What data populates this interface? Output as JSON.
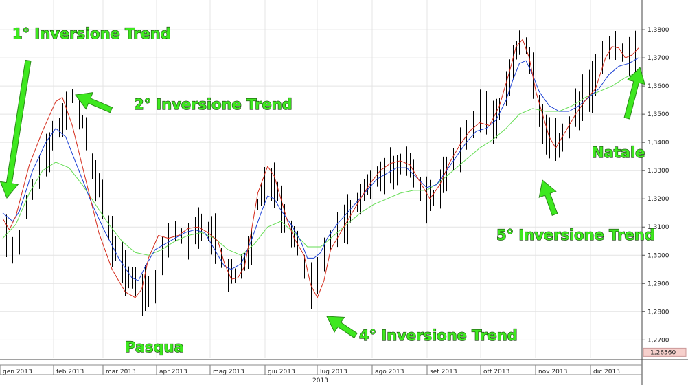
{
  "chart_data": {
    "type": "line",
    "subtype": "ohlc-bars-with-moving-averages",
    "y_range": [
      1.2635,
      1.3905
    ],
    "y_ticks": [
      "1,2700",
      "1,2800",
      "1,2900",
      "1,3000",
      "1,3100",
      "1,3200",
      "1,3300",
      "1,3400",
      "1,3500",
      "1,3600",
      "1,3700",
      "1,3800"
    ],
    "x_ticks": [
      "gen 2013",
      "feb 2013",
      "mar 2013",
      "apr 2013",
      "mag 2013",
      "giu 2013",
      "lug 2013",
      "ago 2013",
      "set 2013",
      "ott 2013",
      "nov 2013",
      "dic 2013"
    ],
    "x_axis_year": "2013",
    "current_price": "1,26560",
    "grid": true,
    "colors": {
      "bars": "#000000",
      "ma_fast": "#d42a1a",
      "ma_mid": "#1a3fd4",
      "ma_slow": "#66dd55",
      "annotations": "#3ee81f",
      "price_box": "#f6d0cc"
    },
    "price_path": [
      [
        0,
        1.3085
      ],
      [
        4,
        1.3012
      ],
      [
        8,
        1.3205
      ],
      [
        12,
        1.3335
      ],
      [
        17,
        1.3455
      ],
      [
        21,
        1.3562
      ],
      [
        23,
        1.351
      ],
      [
        25,
        1.344
      ],
      [
        27,
        1.3305
      ],
      [
        29,
        1.3245
      ],
      [
        33,
        1.3042
      ],
      [
        37,
        1.2945
      ],
      [
        40,
        1.2895
      ],
      [
        43,
        1.2885
      ],
      [
        45,
        1.2858
      ],
      [
        47,
        1.2905
      ],
      [
        49,
        1.3055
      ],
      [
        52,
        1.309
      ],
      [
        55,
        1.306
      ],
      [
        58,
        1.3085
      ],
      [
        61,
        1.3115
      ],
      [
        64,
        1.306
      ],
      [
        67,
        1.296
      ],
      [
        70,
        1.293
      ],
      [
        72,
        1.2962
      ],
      [
        75,
        1.3035
      ],
      [
        77,
        1.318
      ],
      [
        80,
        1.3265
      ],
      [
        82,
        1.3262
      ],
      [
        84,
        1.317
      ],
      [
        86,
        1.3095
      ],
      [
        89,
        1.304
      ],
      [
        92,
        1.292
      ],
      [
        94,
        1.286
      ],
      [
        96,
        1.2958
      ],
      [
        98,
        1.3015
      ],
      [
        100,
        1.3075
      ],
      [
        103,
        1.3115
      ],
      [
        106,
        1.3158
      ],
      [
        109,
        1.323
      ],
      [
        112,
        1.3275
      ],
      [
        115,
        1.3285
      ],
      [
        118,
        1.331
      ],
      [
        121,
        1.3345
      ],
      [
        123,
        1.332
      ],
      [
        125,
        1.3255
      ],
      [
        127,
        1.32
      ],
      [
        129,
        1.3195
      ],
      [
        131,
        1.321
      ],
      [
        134,
        1.3285
      ],
      [
        137,
        1.3355
      ],
      [
        140,
        1.342
      ],
      [
        143,
        1.3495
      ],
      [
        146,
        1.3512
      ],
      [
        149,
        1.348
      ],
      [
        151,
        1.3558
      ],
      [
        153,
        1.3625
      ],
      [
        155,
        1.372
      ],
      [
        157,
        1.3775
      ],
      [
        158,
        1.3745
      ],
      [
        160,
        1.365
      ],
      [
        162,
        1.351
      ],
      [
        164,
        1.3425
      ],
      [
        166,
        1.3375
      ],
      [
        168,
        1.34
      ],
      [
        170,
        1.344
      ],
      [
        172,
        1.3495
      ],
      [
        175,
        1.356
      ],
      [
        178,
        1.3598
      ],
      [
        180,
        1.364
      ],
      [
        182,
        1.372
      ],
      [
        184,
        1.376
      ],
      [
        186,
        1.374
      ],
      [
        188,
        1.369
      ],
      [
        190,
        1.37
      ],
      [
        192,
        1.374
      ]
    ],
    "ma_fast_path": [
      [
        0,
        1.313
      ],
      [
        2,
        1.309
      ],
      [
        4,
        1.314
      ],
      [
        8,
        1.332
      ],
      [
        12,
        1.344
      ],
      [
        16,
        1.3545
      ],
      [
        18,
        1.356
      ],
      [
        21,
        1.346
      ],
      [
        25,
        1.327
      ],
      [
        29,
        1.308
      ],
      [
        33,
        1.295
      ],
      [
        37,
        1.287
      ],
      [
        40,
        1.285
      ],
      [
        42,
        1.288
      ],
      [
        44,
        1.299
      ],
      [
        47,
        1.307
      ],
      [
        50,
        1.306
      ],
      [
        53,
        1.307
      ],
      [
        56,
        1.3095
      ],
      [
        59,
        1.31
      ],
      [
        62,
        1.308
      ],
      [
        65,
        1.305
      ],
      [
        67,
        1.297
      ],
      [
        69,
        1.2915
      ],
      [
        71,
        1.292
      ],
      [
        73,
        1.296
      ],
      [
        75,
        1.308
      ],
      [
        77,
        1.322
      ],
      [
        80,
        1.3315
      ],
      [
        82,
        1.328
      ],
      [
        84,
        1.32
      ],
      [
        86,
        1.312
      ],
      [
        88,
        1.306
      ],
      [
        91,
        1.3
      ],
      [
        93,
        1.2895
      ],
      [
        95,
        1.285
      ],
      [
        97,
        1.291
      ],
      [
        99,
        1.302
      ],
      [
        102,
        1.308
      ],
      [
        105,
        1.314
      ],
      [
        108,
        1.32
      ],
      [
        111,
        1.3255
      ],
      [
        114,
        1.33
      ],
      [
        117,
        1.3325
      ],
      [
        120,
        1.3335
      ],
      [
        123,
        1.332
      ],
      [
        126,
        1.326
      ],
      [
        129,
        1.32
      ],
      [
        132,
        1.325
      ],
      [
        135,
        1.333
      ],
      [
        138,
        1.339
      ],
      [
        141,
        1.344
      ],
      [
        144,
        1.347
      ],
      [
        147,
        1.346
      ],
      [
        150,
        1.353
      ],
      [
        153,
        1.365
      ],
      [
        155,
        1.374
      ],
      [
        157,
        1.3765
      ],
      [
        159,
        1.37
      ],
      [
        161,
        1.358
      ],
      [
        163,
        1.35
      ],
      [
        165,
        1.342
      ],
      [
        167,
        1.338
      ],
      [
        170,
        1.344
      ],
      [
        173,
        1.35
      ],
      [
        176,
        1.355
      ],
      [
        179,
        1.359
      ],
      [
        182,
        1.37
      ],
      [
        184,
        1.374
      ],
      [
        186,
        1.3735
      ],
      [
        188,
        1.37
      ],
      [
        190,
        1.371
      ],
      [
        192,
        1.3735
      ]
    ],
    "ma_mid_path": [
      [
        0,
        1.315
      ],
      [
        3,
        1.312
      ],
      [
        5,
        1.3155
      ],
      [
        9,
        1.33
      ],
      [
        13,
        1.34
      ],
      [
        16,
        1.345
      ],
      [
        19,
        1.342
      ],
      [
        23,
        1.33
      ],
      [
        27,
        1.318
      ],
      [
        31,
        1.308
      ],
      [
        35,
        1.299
      ],
      [
        39,
        1.292
      ],
      [
        41,
        1.291
      ],
      [
        43,
        1.296
      ],
      [
        46,
        1.302
      ],
      [
        49,
        1.304
      ],
      [
        52,
        1.306
      ],
      [
        55,
        1.308
      ],
      [
        58,
        1.309
      ],
      [
        61,
        1.308
      ],
      [
        64,
        1.302
      ],
      [
        67,
        1.296
      ],
      [
        69,
        1.295
      ],
      [
        72,
        1.297
      ],
      [
        75,
        1.305
      ],
      [
        78,
        1.315
      ],
      [
        80,
        1.321
      ],
      [
        82,
        1.32
      ],
      [
        84,
        1.316
      ],
      [
        87,
        1.311
      ],
      [
        90,
        1.305
      ],
      [
        92,
        1.299
      ],
      [
        94,
        1.299
      ],
      [
        96,
        1.301
      ],
      [
        98,
        1.306
      ],
      [
        101,
        1.311
      ],
      [
        104,
        1.315
      ],
      [
        107,
        1.319
      ],
      [
        110,
        1.323
      ],
      [
        113,
        1.327
      ],
      [
        116,
        1.329
      ],
      [
        119,
        1.331
      ],
      [
        122,
        1.331
      ],
      [
        125,
        1.3275
      ],
      [
        128,
        1.324
      ],
      [
        131,
        1.325
      ],
      [
        134,
        1.33
      ],
      [
        137,
        1.335
      ],
      [
        140,
        1.34
      ],
      [
        143,
        1.344
      ],
      [
        146,
        1.345
      ],
      [
        149,
        1.348
      ],
      [
        152,
        1.355
      ],
      [
        154,
        1.362
      ],
      [
        156,
        1.368
      ],
      [
        158,
        1.369
      ],
      [
        160,
        1.364
      ],
      [
        162,
        1.358
      ],
      [
        165,
        1.353
      ],
      [
        168,
        1.351
      ],
      [
        171,
        1.351
      ],
      [
        174,
        1.353
      ],
      [
        177,
        1.356
      ],
      [
        180,
        1.359
      ],
      [
        183,
        1.364
      ],
      [
        186,
        1.367
      ],
      [
        189,
        1.368
      ],
      [
        192,
        1.37
      ]
    ],
    "ma_slow_path": [
      [
        0,
        1.306
      ],
      [
        4,
        1.311
      ],
      [
        8,
        1.322
      ],
      [
        12,
        1.33
      ],
      [
        16,
        1.333
      ],
      [
        20,
        1.331
      ],
      [
        24,
        1.325
      ],
      [
        28,
        1.318
      ],
      [
        32,
        1.311
      ],
      [
        36,
        1.305
      ],
      [
        40,
        1.301
      ],
      [
        44,
        1.3
      ],
      [
        48,
        1.302
      ],
      [
        52,
        1.305
      ],
      [
        56,
        1.307
      ],
      [
        60,
        1.308
      ],
      [
        64,
        1.306
      ],
      [
        68,
        1.302
      ],
      [
        72,
        1.3
      ],
      [
        76,
        1.304
      ],
      [
        80,
        1.31
      ],
      [
        84,
        1.312
      ],
      [
        88,
        1.308
      ],
      [
        92,
        1.303
      ],
      [
        96,
        1.303
      ],
      [
        100,
        1.307
      ],
      [
        104,
        1.311
      ],
      [
        108,
        1.315
      ],
      [
        112,
        1.318
      ],
      [
        116,
        1.32
      ],
      [
        120,
        1.322
      ],
      [
        124,
        1.323
      ],
      [
        128,
        1.323
      ],
      [
        132,
        1.326
      ],
      [
        136,
        1.33
      ],
      [
        140,
        1.334
      ],
      [
        144,
        1.338
      ],
      [
        148,
        1.341
      ],
      [
        152,
        1.345
      ],
      [
        156,
        1.35
      ],
      [
        160,
        1.352
      ],
      [
        164,
        1.351
      ],
      [
        168,
        1.351
      ],
      [
        172,
        1.353
      ],
      [
        176,
        1.356
      ],
      [
        180,
        1.358
      ],
      [
        184,
        1.36
      ],
      [
        188,
        1.363
      ],
      [
        192,
        1.365
      ]
    ],
    "annotations": [
      {
        "text": "1° Inversione Trend"
      },
      {
        "text": "2° Inversione Trend"
      },
      {
        "text": "Pasqua"
      },
      {
        "text": "4° Inversione Trend"
      },
      {
        "text": "5° Inversione Trend"
      },
      {
        "text": "Natale"
      }
    ]
  }
}
